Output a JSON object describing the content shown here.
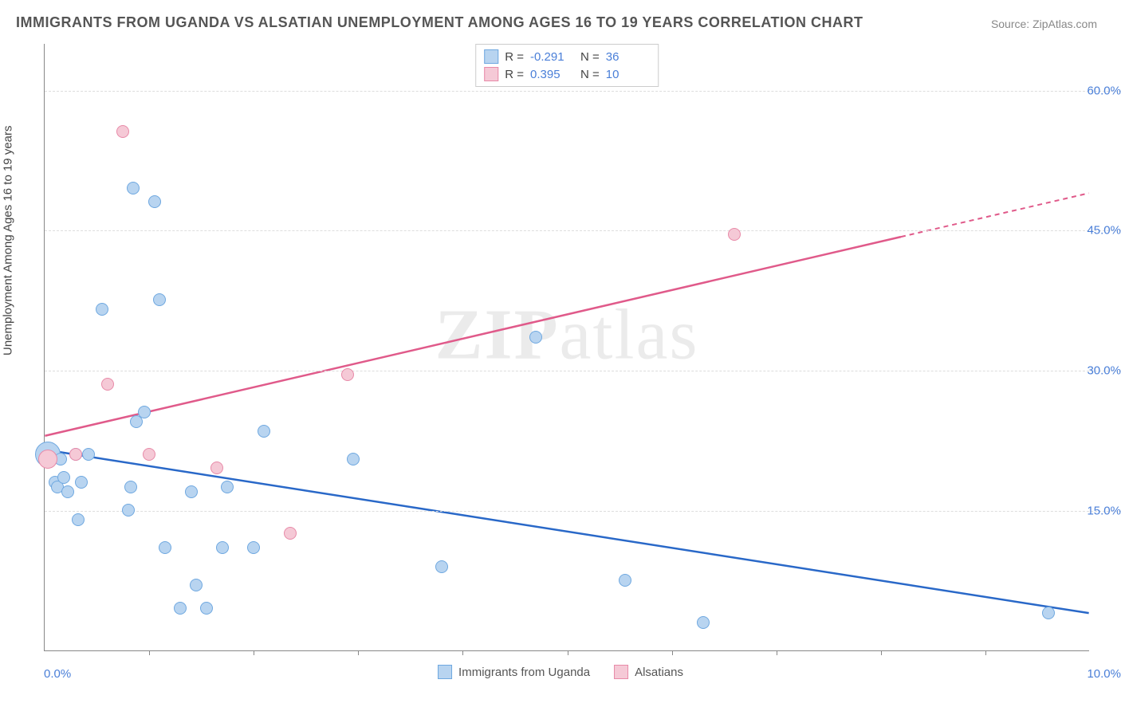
{
  "title": "IMMIGRANTS FROM UGANDA VS ALSATIAN UNEMPLOYMENT AMONG AGES 16 TO 19 YEARS CORRELATION CHART",
  "source": "Source: ZipAtlas.com",
  "y_axis_title": "Unemployment Among Ages 16 to 19 years",
  "watermark_a": "ZIP",
  "watermark_b": "atlas",
  "chart": {
    "type": "scatter",
    "x_min": 0.0,
    "x_max": 10.0,
    "y_min": 0.0,
    "y_max": 65.0,
    "y_ticks": [
      15.0,
      30.0,
      45.0,
      60.0
    ],
    "y_tick_labels": [
      "15.0%",
      "30.0%",
      "45.0%",
      "60.0%"
    ],
    "x_ticks": [
      1.0,
      2.0,
      3.0,
      4.0,
      5.0,
      6.0,
      7.0,
      8.0,
      9.0
    ],
    "x_label_min": "0.0%",
    "x_label_max": "10.0%",
    "grid_color": "#dddddd",
    "axis_color": "#888888",
    "background_color": "#ffffff",
    "series": [
      {
        "name": "Immigrants from Uganda",
        "fill": "#b8d4f0",
        "stroke": "#6fa8e0",
        "line_color": "#2968c8",
        "R": "-0.291",
        "N": "36",
        "marker_radius": 8,
        "trend": {
          "x1": 0.0,
          "y1": 21.5,
          "x2": 10.0,
          "y2": 4.0,
          "dash_from_x": null
        },
        "points": [
          {
            "x": 0.03,
            "y": 21.0,
            "r": 16
          },
          {
            "x": 0.05,
            "y": 20.5
          },
          {
            "x": 0.1,
            "y": 18.0
          },
          {
            "x": 0.12,
            "y": 17.5
          },
          {
            "x": 0.15,
            "y": 20.5
          },
          {
            "x": 0.18,
            "y": 18.5
          },
          {
            "x": 0.22,
            "y": 17.0
          },
          {
            "x": 0.3,
            "y": 21.0
          },
          {
            "x": 0.32,
            "y": 14.0
          },
          {
            "x": 0.35,
            "y": 18.0
          },
          {
            "x": 0.42,
            "y": 21.0
          },
          {
            "x": 0.55,
            "y": 36.5
          },
          {
            "x": 0.8,
            "y": 15.0
          },
          {
            "x": 0.82,
            "y": 17.5
          },
          {
            "x": 0.85,
            "y": 49.5
          },
          {
            "x": 0.88,
            "y": 24.5
          },
          {
            "x": 0.95,
            "y": 25.5
          },
          {
            "x": 1.05,
            "y": 48.0
          },
          {
            "x": 1.1,
            "y": 37.5
          },
          {
            "x": 1.15,
            "y": 11.0
          },
          {
            "x": 1.3,
            "y": 4.5
          },
          {
            "x": 1.4,
            "y": 17.0
          },
          {
            "x": 1.45,
            "y": 7.0
          },
          {
            "x": 1.55,
            "y": 4.5
          },
          {
            "x": 1.7,
            "y": 11.0
          },
          {
            "x": 1.75,
            "y": 17.5
          },
          {
            "x": 2.0,
            "y": 11.0
          },
          {
            "x": 2.1,
            "y": 23.5
          },
          {
            "x": 2.95,
            "y": 20.5
          },
          {
            "x": 3.8,
            "y": 9.0
          },
          {
            "x": 4.7,
            "y": 33.5
          },
          {
            "x": 5.55,
            "y": 7.5
          },
          {
            "x": 6.3,
            "y": 3.0
          },
          {
            "x": 9.6,
            "y": 4.0
          }
        ]
      },
      {
        "name": "Alsatians",
        "fill": "#f5c9d6",
        "stroke": "#e88aa8",
        "line_color": "#e05a8a",
        "R": "0.395",
        "N": "10",
        "marker_radius": 8,
        "trend": {
          "x1": 0.0,
          "y1": 23.0,
          "x2": 10.0,
          "y2": 49.0,
          "dash_from_x": 8.2
        },
        "points": [
          {
            "x": 0.03,
            "y": 20.5,
            "r": 12
          },
          {
            "x": 0.3,
            "y": 21.0
          },
          {
            "x": 0.6,
            "y": 28.5
          },
          {
            "x": 0.75,
            "y": 55.5
          },
          {
            "x": 1.0,
            "y": 21.0
          },
          {
            "x": 1.65,
            "y": 19.5
          },
          {
            "x": 2.35,
            "y": 12.5
          },
          {
            "x": 2.9,
            "y": 29.5
          },
          {
            "x": 6.6,
            "y": 44.5
          }
        ]
      }
    ]
  },
  "legend_top": {
    "r_label": "R =",
    "n_label": "N ="
  },
  "legend_bottom": [
    {
      "label": "Immigrants from Uganda",
      "fill": "#b8d4f0",
      "stroke": "#6fa8e0"
    },
    {
      "label": "Alsatians",
      "fill": "#f5c9d6",
      "stroke": "#e88aa8"
    }
  ]
}
